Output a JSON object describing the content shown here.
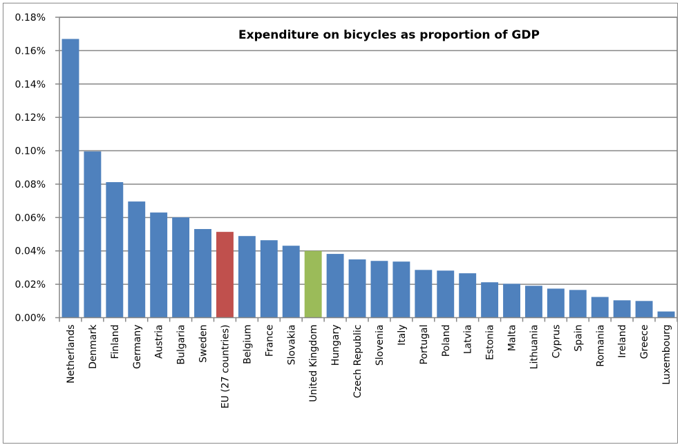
{
  "chart_data": {
    "type": "bar",
    "title": "Expenditure on bicycles as proportion of GDP",
    "xlabel": "",
    "ylabel": "",
    "ylim": [
      0,
      0.18
    ],
    "y_unit": "%",
    "y_ticks": [
      "0.00%",
      "0.02%",
      "0.04%",
      "0.06%",
      "0.08%",
      "0.10%",
      "0.12%",
      "0.14%",
      "0.16%",
      "0.18%"
    ],
    "grid": true,
    "legend": "none",
    "categories": [
      "Netherlands",
      "Denmark",
      "Finland",
      "Germany",
      "Austria",
      "Bulgaria",
      "Sweden",
      "EU (27 countries)",
      "Belgium",
      "France",
      "Slovakia",
      "United Kingdom",
      "Hungary",
      "Czech Republic",
      "Slovenia",
      "Italy",
      "Portugal",
      "Poland",
      "Latvia",
      "Estonia",
      "Malta",
      "Lithuania",
      "Cyprus",
      "Spain",
      "Romania",
      "Ireland",
      "Greece",
      "Luxembourg"
    ],
    "values": [
      0.167,
      0.0996,
      0.0812,
      0.0696,
      0.063,
      0.0601,
      0.0531,
      0.0514,
      0.0489,
      0.0464,
      0.0431,
      0.04,
      0.0382,
      0.0349,
      0.034,
      0.0336,
      0.0286,
      0.0282,
      0.0266,
      0.0212,
      0.0203,
      0.0191,
      0.0174,
      0.0166,
      0.0124,
      0.0104,
      0.01,
      0.0037
    ],
    "colors": {
      "default": "#4F81BD",
      "EU (27 countries)": "#C0504D",
      "United Kingdom": "#9BBB59"
    }
  }
}
